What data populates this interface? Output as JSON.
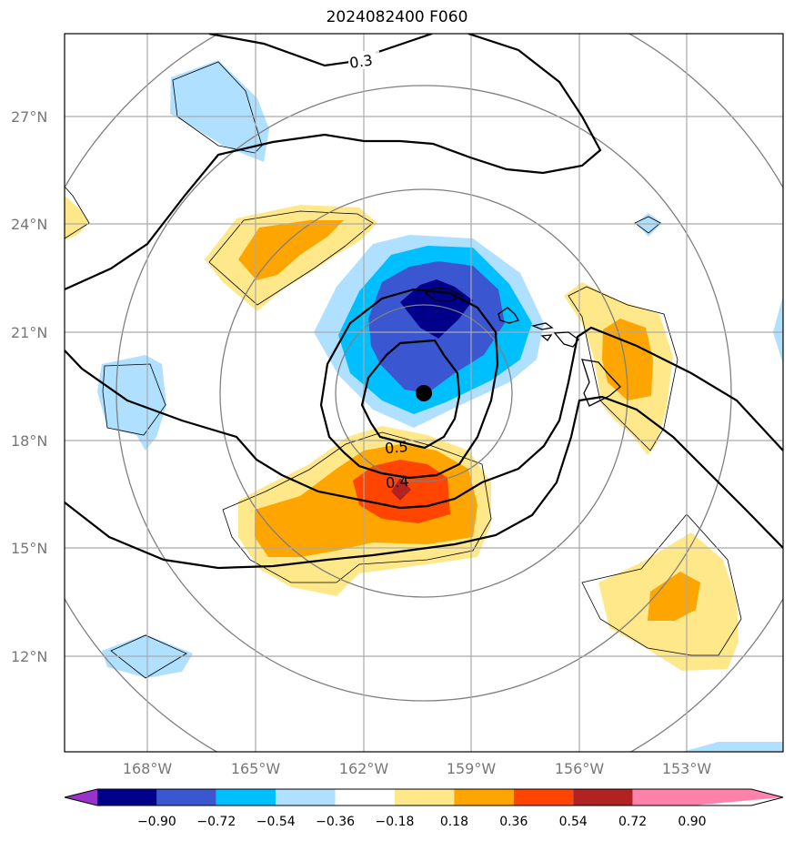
{
  "title": "2024082400 F060",
  "lat_ticks": [
    "27°N",
    "24°N",
    "21°N",
    "18°N",
    "15°N",
    "12°N"
  ],
  "lon_ticks": [
    "168°W",
    "165°W",
    "162°W",
    "159°W",
    "156°W",
    "153°W"
  ],
  "contour_labels": [
    "0.3",
    "0.5",
    "0.4"
  ],
  "colorbar": {
    "ticks": [
      "−0.90",
      "−0.72",
      "−0.54",
      "−0.36",
      "−0.18",
      "0.18",
      "0.36",
      "0.54",
      "0.72",
      "0.90"
    ],
    "colors": [
      "#9932cc",
      "#00008b",
      "#3a57d1",
      "#00bfff",
      "#b0e0ff",
      "#ffffff",
      "#ffe88a",
      "#ffa500",
      "#ff4500",
      "#b22222",
      "#ff82ab"
    ]
  },
  "storm_center": {
    "lat": 19.3,
    "lon": -160.2
  }
}
